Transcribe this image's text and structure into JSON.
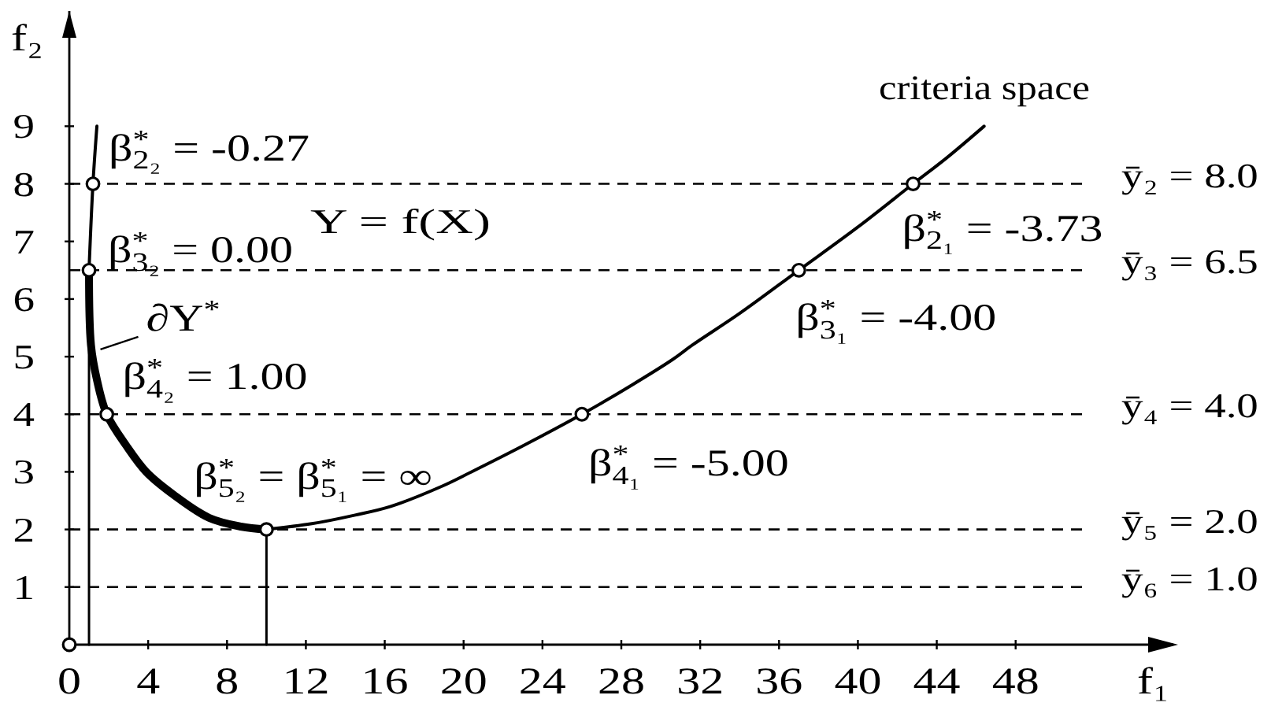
{
  "chart_data": {
    "type": "line",
    "xlabel": "f₁",
    "ylabel": "f₂",
    "xlim": [
      0,
      56
    ],
    "ylim": [
      0,
      11
    ],
    "xticks": [
      0,
      4,
      8,
      12,
      16,
      20,
      24,
      28,
      32,
      36,
      40,
      44,
      48
    ],
    "yticks": [
      1,
      2,
      3,
      4,
      5,
      6,
      7,
      8,
      9
    ],
    "series": [
      {
        "color": "#000000",
        "x": [
          1.0,
          1.2,
          1.4
        ],
        "values": [
          6.5,
          8,
          9
        ]
      },
      {
        "color": "#000000",
        "x": [
          1.0,
          1.1,
          1.4,
          1.9,
          2.9,
          3.9,
          5.3,
          7.1,
          8.7,
          10
        ],
        "values": [
          6.5,
          5.2,
          4.6,
          4,
          3.45,
          3.0,
          2.6,
          2.2,
          2.05,
          2
        ]
      },
      {
        "color": "#000000",
        "x": [
          10,
          12.3,
          14.5,
          16.3,
          18.9,
          20.4,
          23,
          26,
          28.5,
          30.6,
          31.6,
          34,
          37,
          40,
          42.8,
          44.5,
          46.4
        ],
        "values": [
          2,
          2.1,
          2.25,
          2.4,
          2.75,
          3,
          3.45,
          4,
          4.5,
          4.95,
          5.2,
          5.75,
          6.5,
          7.25,
          8,
          8.45,
          9
        ]
      },
      {
        "color": "#000000",
        "x": [
          1.0,
          1.0
        ],
        "values": [
          0,
          6.5
        ]
      },
      {
        "color": "#000000",
        "x": [
          10,
          10
        ],
        "values": [
          0,
          2
        ]
      },
      {
        "type": "scatter",
        "color": "#000000",
        "marker": "circle",
        "x": [
          0,
          1.2,
          1.0,
          1.9,
          10,
          26,
          37,
          42.8
        ],
        "values": [
          0,
          8,
          6.5,
          4,
          2,
          4,
          6.5,
          8
        ]
      }
    ],
    "ref_lines": [
      {
        "axis": "y",
        "value": 8,
        "label": "ȳ₂ = 8.0",
        "line_style": "dashed",
        "color": "#000000"
      },
      {
        "axis": "y",
        "value": 6.5,
        "label": "ȳ₃ = 6.5",
        "line_style": "dashed",
        "color": "#000000"
      },
      {
        "axis": "y",
        "value": 4,
        "label": "ȳ₄ = 4.0",
        "line_style": "dashed",
        "color": "#000000"
      },
      {
        "axis": "y",
        "value": 2,
        "label": "ȳ₅ = 2.0",
        "line_style": "dashed",
        "color": "#000000"
      },
      {
        "axis": "y",
        "value": 1,
        "label": "ȳ₆ = 1.0",
        "line_style": "dashed",
        "color": "#000000"
      }
    ],
    "annotations": [
      {
        "text": "β$^{*}$$_{2₂}$ = -0.27",
        "x": 1.2,
        "y": 8
      },
      {
        "text": "β$^{*}$$_{3₂}$ = 0.00",
        "x": 1.0,
        "y": 6.5
      },
      {
        "text": "∂Y$^{*}$",
        "x": 1.5,
        "y": 5.1
      },
      {
        "text": "β$^{*}$$_{4₂}$ = 1.00",
        "x": 1.9,
        "y": 4
      },
      {
        "text": "β$^{*}$$_{5₂}$ = β$^{*}$$_{5₁}$ = ∞",
        "x": 10,
        "y": 2
      },
      {
        "text": "β$^{*}$$_{4₁}$ = -5.00",
        "x": 26,
        "y": 4
      },
      {
        "text": "β$^{*}$$_{3₁}$ = -4.00",
        "x": 37,
        "y": 6.5
      },
      {
        "text": "β$^{*}$$_{2₁}$ = -3.73",
        "x": 42.8,
        "y": 8
      },
      "Y = f(X)",
      "criteria space"
    ]
  }
}
